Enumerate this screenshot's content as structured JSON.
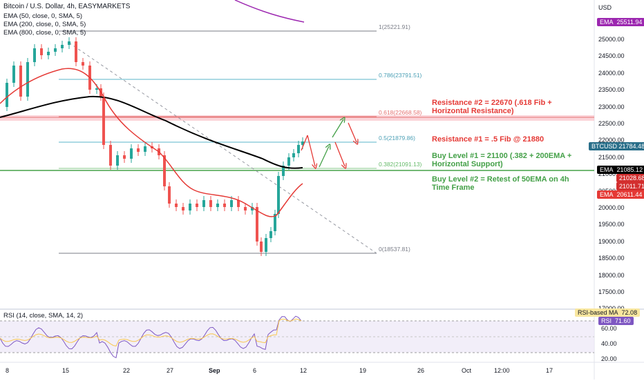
{
  "header": {
    "title": "Bitcoin / U.S. Dollar, 4h, EASYMARKETS",
    "indicators": [
      "EMA (50, close, 0, SMA, 5)",
      "EMA (200, close, 0, SMA, 5)",
      "EMA (800, close, 0, SMA, 5)"
    ],
    "currency": "USD"
  },
  "axis": {
    "price_ticks": [
      "25000.00",
      "24500.00",
      "24000.00",
      "23500.00",
      "23000.00",
      "22500.00",
      "22000.00",
      "21500.00",
      "21000.00",
      "20500.00",
      "20000.00",
      "19500.00",
      "19000.00",
      "18500.00",
      "18000.00",
      "17500.00",
      "17000.00"
    ],
    "date_ticks": [
      "8",
      "15",
      "22",
      "27",
      "Sep",
      "6",
      "12",
      "19",
      "26",
      "Oct",
      "12:00",
      "17"
    ]
  },
  "fib_levels": [
    "1(25221.91)",
    "0.786(23791.51)",
    "0.618(22668.58)",
    "0.5(21879.86)",
    "0.382(21091.13)",
    "0(18537.81)"
  ],
  "annotations": {
    "resistance2": "Resistance #2 = 22670 (.618 Fib + Horizontal Resistance)",
    "resistance1": "Resistance #1 = .5 Fib @ 21880",
    "buy1": "Buy Level #1 = 21100 (.382 + 200EMA + Horizontal Support)",
    "buy2": "Buy Level #2 = Retest of 50EMA on 4h Time Frame"
  },
  "price_tags": {
    "ema800": {
      "label": "EMA",
      "value": "25511.94",
      "color": "#9c27b0"
    },
    "btcusd": {
      "label": "BTCUSD",
      "value": "21784.48",
      "color": "#2a6f8a"
    },
    "ema200": {
      "label": "EMA",
      "value": "21085.12",
      "color": "#000000"
    },
    "level1": {
      "value": "21028.68",
      "color": "#d32f2f"
    },
    "level2": {
      "value": "21011.71",
      "color": "#d32f2f"
    },
    "ema50": {
      "label": "EMA",
      "value": "20611.44",
      "color": "#e53935"
    }
  },
  "rsi": {
    "title": "RSI (14, close, SMA, 14, 2)",
    "ticks": [
      "80.00",
      "60.00",
      "40.00",
      "20.00"
    ],
    "ma_label": "RSI-based MA",
    "ma_value": "72.08",
    "rsi_label": "RSI",
    "rsi_value": "71.60"
  },
  "colors": {
    "up": "#26a69a",
    "down": "#ef5350",
    "ema50": "#e53935",
    "ema200": "#000000",
    "ema800": "#9c27b0"
  }
}
